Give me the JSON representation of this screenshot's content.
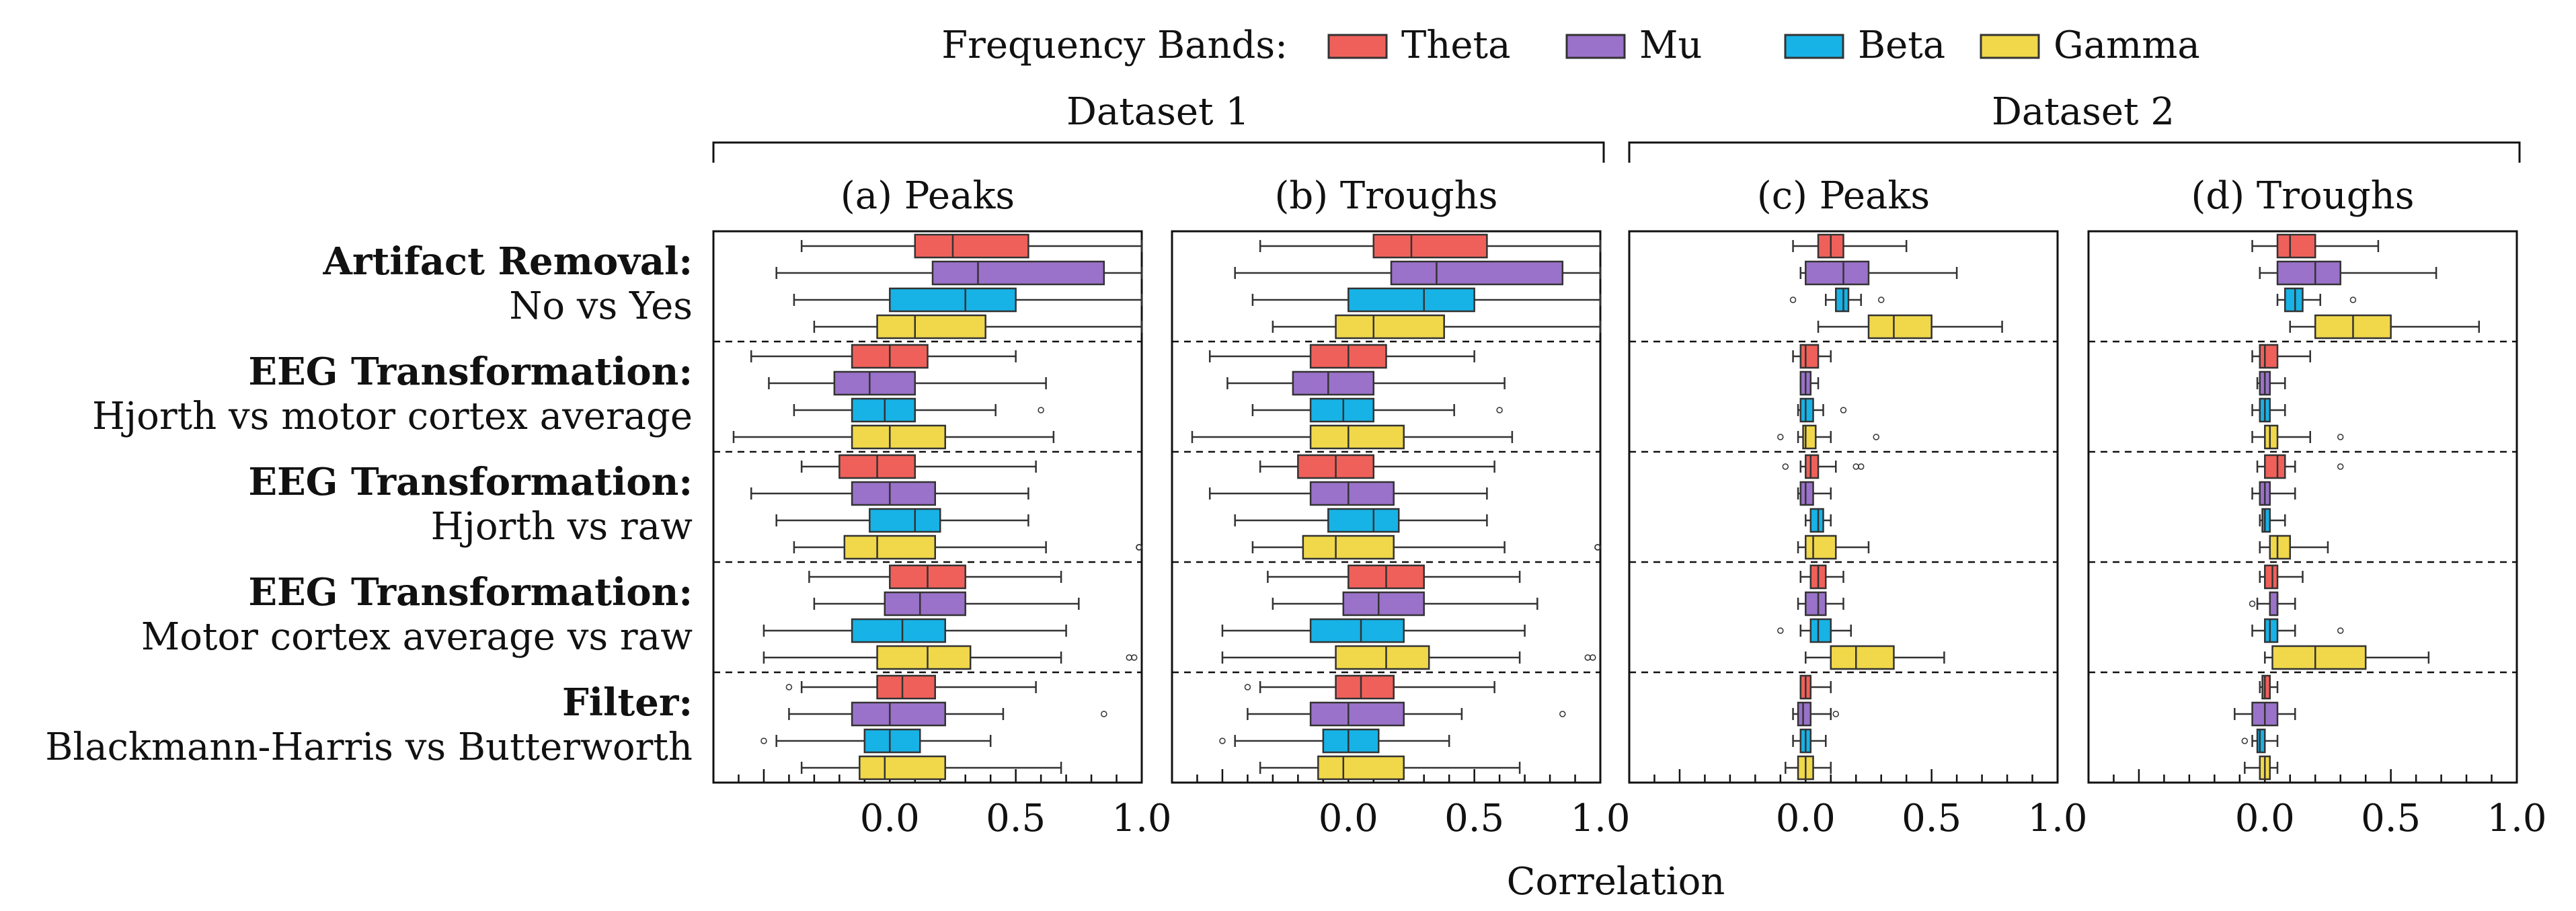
{
  "legend": {
    "title": "Frequency Bands:",
    "items": [
      {
        "name": "Theta",
        "color": "#f0605a"
      },
      {
        "name": "Mu",
        "color": "#9a72c9"
      },
      {
        "name": "Beta",
        "color": "#17b2e6"
      },
      {
        "name": "Gamma",
        "color": "#f0d84a"
      }
    ]
  },
  "datasets": [
    "Dataset 1",
    "Dataset 2"
  ],
  "xlabel": "Correlation",
  "chart_data": {
    "type": "boxplot",
    "xlabel": "Correlation",
    "xlim": [
      -0.7,
      1.0
    ],
    "xticks": [
      "0.0",
      "0.5",
      "1.0"
    ],
    "panels": [
      "(a) Peaks",
      "(b) Troughs",
      "(c) Peaks",
      "(d) Troughs"
    ],
    "rows": [
      {
        "bold": "Artifact Removal:",
        "label": "No vs Yes"
      },
      {
        "bold": "EEG Transformation:",
        "label": "Hjorth vs motor cortex average"
      },
      {
        "bold": "EEG Transformation:",
        "label": "Hjorth vs raw"
      },
      {
        "bold": "EEG Transformation:",
        "label": "Motor cortex average vs raw"
      },
      {
        "bold": "Filter:",
        "label": "Blackmann-Harris vs Butterworth"
      }
    ],
    "series": [
      "Theta",
      "Mu",
      "Beta",
      "Gamma"
    ],
    "boxes": [
      [
        [
          [
            -0.35,
            0.1,
            0.25,
            0.55,
            1.0
          ],
          [
            -0.45,
            0.17,
            0.35,
            0.85,
            1.0
          ],
          [
            -0.38,
            0.0,
            0.3,
            0.5,
            1.0
          ],
          [
            -0.3,
            -0.05,
            0.1,
            0.38,
            1.0
          ]
        ],
        [
          [
            -0.55,
            -0.15,
            0.0,
            0.15,
            0.5
          ],
          [
            -0.48,
            -0.22,
            -0.08,
            0.1,
            0.62
          ],
          [
            -0.38,
            -0.15,
            -0.02,
            0.1,
            0.42
          ],
          [
            -0.62,
            -0.15,
            0.0,
            0.22,
            0.65
          ]
        ],
        [
          [
            -0.35,
            -0.2,
            -0.05,
            0.1,
            0.58
          ],
          [
            -0.55,
            -0.15,
            0.0,
            0.18,
            0.55
          ],
          [
            -0.45,
            -0.08,
            0.1,
            0.2,
            0.55
          ],
          [
            -0.38,
            -0.18,
            -0.05,
            0.18,
            0.62
          ]
        ],
        [
          [
            -0.32,
            0.0,
            0.15,
            0.3,
            0.68
          ],
          [
            -0.3,
            -0.02,
            0.12,
            0.3,
            0.75
          ],
          [
            -0.5,
            -0.15,
            0.05,
            0.22,
            0.7
          ],
          [
            -0.5,
            -0.05,
            0.15,
            0.32,
            0.68
          ]
        ],
        [
          [
            -0.35,
            -0.05,
            0.05,
            0.18,
            0.58
          ],
          [
            -0.4,
            -0.15,
            0.0,
            0.22,
            0.45
          ],
          [
            -0.45,
            -0.1,
            0.0,
            0.12,
            0.4
          ],
          [
            -0.35,
            -0.12,
            -0.02,
            0.22,
            0.68
          ]
        ]
      ],
      [
        [
          [
            -0.35,
            0.1,
            0.25,
            0.55,
            1.0
          ],
          [
            -0.45,
            0.17,
            0.35,
            0.85,
            1.0
          ],
          [
            -0.38,
            0.0,
            0.3,
            0.5,
            1.0
          ],
          [
            -0.3,
            -0.05,
            0.1,
            0.38,
            1.0
          ]
        ],
        [
          [
            -0.55,
            -0.15,
            0.0,
            0.15,
            0.5
          ],
          [
            -0.48,
            -0.22,
            -0.08,
            0.1,
            0.62
          ],
          [
            -0.38,
            -0.15,
            -0.02,
            0.1,
            0.42
          ],
          [
            -0.62,
            -0.15,
            0.0,
            0.22,
            0.65
          ]
        ],
        [
          [
            -0.35,
            -0.2,
            -0.05,
            0.1,
            0.58
          ],
          [
            -0.55,
            -0.15,
            0.0,
            0.18,
            0.55
          ],
          [
            -0.45,
            -0.08,
            0.1,
            0.2,
            0.55
          ],
          [
            -0.38,
            -0.18,
            -0.05,
            0.18,
            0.62
          ]
        ],
        [
          [
            -0.32,
            0.0,
            0.15,
            0.3,
            0.68
          ],
          [
            -0.3,
            -0.02,
            0.12,
            0.3,
            0.75
          ],
          [
            -0.5,
            -0.15,
            0.05,
            0.22,
            0.7
          ],
          [
            -0.5,
            -0.05,
            0.15,
            0.32,
            0.68
          ]
        ],
        [
          [
            -0.35,
            -0.05,
            0.05,
            0.18,
            0.58
          ],
          [
            -0.4,
            -0.15,
            0.0,
            0.22,
            0.45
          ],
          [
            -0.45,
            -0.1,
            0.0,
            0.12,
            0.4
          ],
          [
            -0.35,
            -0.12,
            -0.02,
            0.22,
            0.68
          ]
        ]
      ],
      [
        [
          [
            -0.05,
            0.05,
            0.1,
            0.15,
            0.4
          ],
          [
            -0.02,
            0.0,
            0.15,
            0.25,
            0.6
          ],
          [
            0.08,
            0.12,
            0.15,
            0.17,
            0.22
          ],
          [
            0.05,
            0.25,
            0.35,
            0.5,
            0.78
          ]
        ],
        [
          [
            -0.05,
            -0.02,
            0.0,
            0.05,
            0.1
          ],
          [
            -0.02,
            -0.02,
            0.0,
            0.02,
            0.05
          ],
          [
            -0.03,
            -0.02,
            0.0,
            0.03,
            0.07
          ],
          [
            -0.03,
            -0.01,
            0.0,
            0.04,
            0.1
          ]
        ],
        [
          [
            -0.02,
            0.0,
            0.02,
            0.05,
            0.12
          ],
          [
            -0.03,
            -0.02,
            0.0,
            0.03,
            0.1
          ],
          [
            0.0,
            0.02,
            0.05,
            0.07,
            0.1
          ],
          [
            -0.03,
            0.0,
            0.03,
            0.12,
            0.25
          ]
        ],
        [
          [
            -0.02,
            0.02,
            0.05,
            0.08,
            0.15
          ],
          [
            -0.03,
            0.0,
            0.05,
            0.08,
            0.15
          ],
          [
            -0.02,
            0.02,
            0.05,
            0.1,
            0.18
          ],
          [
            0.0,
            0.1,
            0.2,
            0.35,
            0.55
          ]
        ],
        [
          [
            -0.02,
            -0.02,
            0.0,
            0.02,
            0.1
          ],
          [
            -0.05,
            -0.03,
            -0.01,
            0.02,
            0.1
          ],
          [
            -0.05,
            -0.02,
            0.0,
            0.02,
            0.08
          ],
          [
            -0.08,
            -0.03,
            0.0,
            0.03,
            0.1
          ]
        ]
      ],
      [
        [
          [
            -0.05,
            0.05,
            0.1,
            0.2,
            0.45
          ],
          [
            -0.02,
            0.05,
            0.2,
            0.3,
            0.68
          ],
          [
            0.05,
            0.08,
            0.12,
            0.15,
            0.22
          ],
          [
            0.1,
            0.2,
            0.35,
            0.5,
            0.85
          ]
        ],
        [
          [
            -0.05,
            -0.02,
            0.0,
            0.05,
            0.18
          ],
          [
            -0.03,
            -0.02,
            0.0,
            0.02,
            0.08
          ],
          [
            -0.05,
            -0.02,
            0.0,
            0.02,
            0.08
          ],
          [
            -0.05,
            0.0,
            0.02,
            0.05,
            0.18
          ]
        ],
        [
          [
            -0.03,
            0.0,
            0.05,
            0.08,
            0.12
          ],
          [
            -0.05,
            -0.02,
            0.0,
            0.02,
            0.12
          ],
          [
            -0.02,
            -0.01,
            0.0,
            0.02,
            0.08
          ],
          [
            -0.02,
            0.02,
            0.05,
            0.1,
            0.25
          ]
        ],
        [
          [
            -0.02,
            0.0,
            0.03,
            0.05,
            0.15
          ],
          [
            -0.03,
            0.02,
            0.05,
            0.05,
            0.12
          ],
          [
            -0.05,
            0.0,
            0.02,
            0.05,
            0.12
          ],
          [
            0.0,
            0.03,
            0.2,
            0.4,
            0.65
          ]
        ],
        [
          [
            -0.02,
            -0.01,
            0.0,
            0.02,
            0.05
          ],
          [
            -0.12,
            -0.05,
            0.0,
            0.05,
            0.12
          ],
          [
            -0.05,
            -0.03,
            -0.02,
            0.0,
            0.05
          ],
          [
            -0.08,
            -0.02,
            0.0,
            0.02,
            0.05
          ]
        ]
      ]
    ],
    "outliers": [
      [
        [
          [],
          [],
          [],
          []
        ],
        [
          [],
          [],
          [
            0.6
          ],
          []
        ],
        [
          [],
          [],
          [],
          [
            1.0,
            1.02,
            1.04
          ]
        ],
        [
          [],
          [],
          [],
          [
            0.95,
            0.97
          ]
        ],
        [
          [
            -0.4
          ],
          [
            0.85
          ],
          [
            -0.5
          ],
          []
        ]
      ],
      [
        [
          [],
          [],
          [],
          []
        ],
        [
          [],
          [],
          [
            0.6
          ],
          []
        ],
        [
          [],
          [],
          [],
          [
            1.0,
            1.02,
            1.04
          ]
        ],
        [
          [],
          [],
          [],
          [
            0.95,
            0.97
          ]
        ],
        [
          [
            -0.4
          ],
          [
            0.85
          ],
          [
            -0.5
          ],
          []
        ]
      ],
      [
        [
          [],
          [],
          [
            -0.05,
            0.3
          ],
          []
        ],
        [
          [],
          [],
          [
            0.15
          ],
          [
            -0.1,
            0.28
          ]
        ],
        [
          [
            -0.08,
            0.2,
            0.22
          ],
          [],
          [],
          []
        ],
        [
          [],
          [],
          [
            -0.1
          ],
          []
        ],
        [
          [],
          [
            0.12
          ],
          [],
          []
        ]
      ],
      [
        [
          [],
          [],
          [
            0.35
          ],
          []
        ],
        [
          [],
          [],
          [],
          [
            0.3
          ]
        ],
        [
          [
            0.3
          ],
          [],
          [],
          []
        ],
        [
          [],
          [
            -0.05
          ],
          [
            0.3
          ],
          []
        ],
        [
          [],
          [],
          [
            -0.08
          ],
          []
        ]
      ]
    ]
  }
}
